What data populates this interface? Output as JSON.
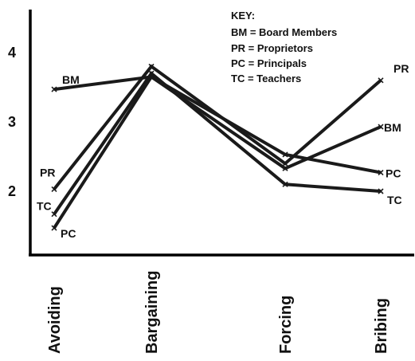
{
  "chart_data": {
    "type": "line",
    "categories": [
      "Avoiding",
      "Bargaining",
      "Forcing",
      "Bribing"
    ],
    "yticks": [
      2,
      3,
      4
    ],
    "ylim": [
      1.1,
      4.7
    ],
    "grid": false,
    "legend_position": "top-right",
    "key": {
      "title": "KEY:",
      "entries": [
        "BM = Board Members",
        "PR = Proprietors",
        "PC = Principals",
        "TC = Teachers"
      ]
    },
    "series": [
      {
        "name": "BM",
        "values": [
          3.47,
          3.65,
          2.33,
          2.93
        ]
      },
      {
        "name": "PR",
        "values": [
          2.03,
          3.8,
          2.4,
          3.6
        ]
      },
      {
        "name": "PC",
        "values": [
          1.47,
          3.65,
          2.53,
          2.27
        ]
      },
      {
        "name": "TC",
        "values": [
          1.67,
          3.7,
          2.1,
          2.0
        ]
      }
    ]
  }
}
